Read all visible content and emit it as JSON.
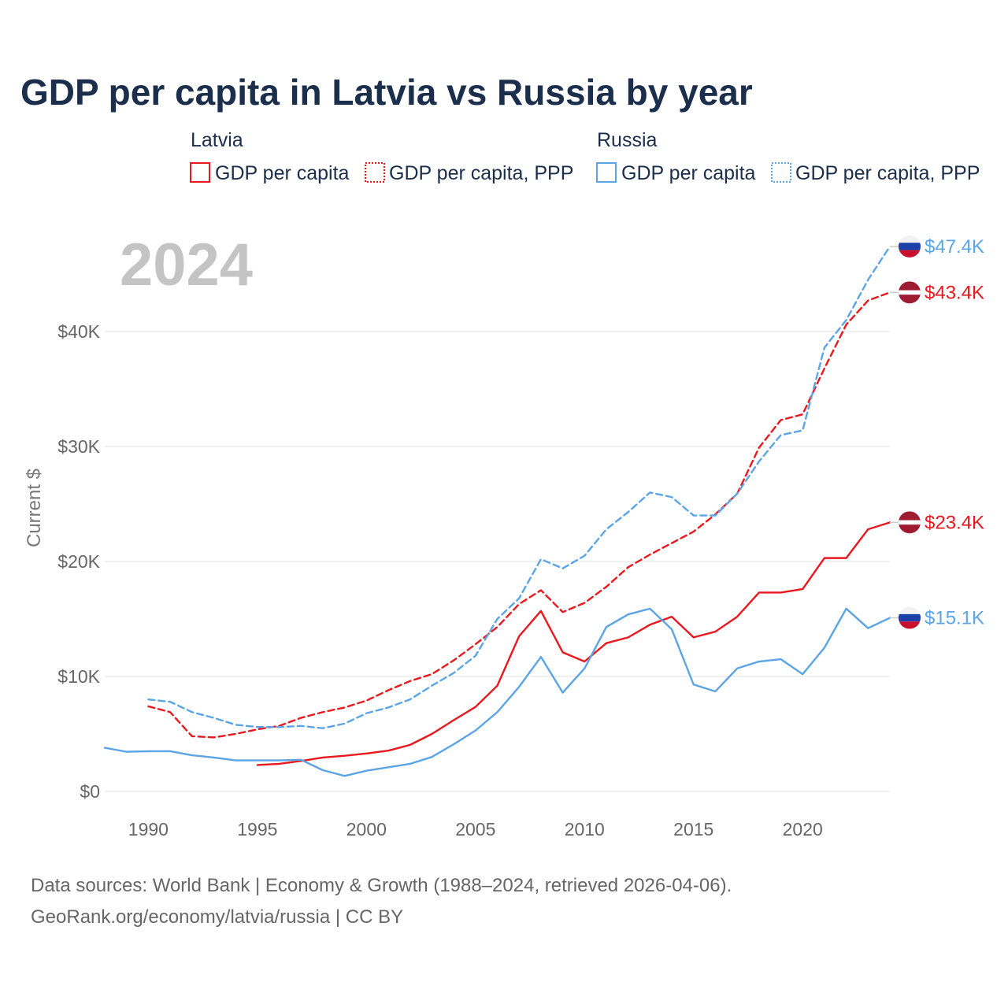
{
  "title": "GDP per capita in Latvia vs Russia by year",
  "year_display": "2024",
  "legend": {
    "groups": [
      {
        "name": "Latvia",
        "color": "#e8191e",
        "items": [
          {
            "label": "GDP per capita",
            "style": "solid"
          },
          {
            "label": "GDP per capita, PPP",
            "style": "dashed"
          }
        ]
      },
      {
        "name": "Russia",
        "color": "#5ba4e6",
        "items": [
          {
            "label": "GDP per capita",
            "style": "solid"
          },
          {
            "label": "GDP per capita, PPP",
            "style": "dashed"
          }
        ]
      }
    ]
  },
  "footer": {
    "line1": "Data sources: World Bank | Economy & Growth (1988–2024, retrieved 2026-04-06).",
    "line2": "GeoRank.org/economy/latvia/russia | CC BY"
  },
  "chart_data": {
    "type": "line",
    "title": "GDP per capita in Latvia vs Russia by year",
    "xlabel": "",
    "ylabel": "Current $",
    "xlim": [
      1988,
      2024
    ],
    "ylim": [
      0,
      50000
    ],
    "x_ticks": [
      1990,
      1995,
      2000,
      2005,
      2010,
      2015,
      2020
    ],
    "x_tick_labels": [
      "1990",
      "1995",
      "2000",
      "2005",
      "2010",
      "2015",
      "2020"
    ],
    "y_ticks": [
      0,
      10000,
      20000,
      30000,
      40000
    ],
    "y_tick_labels": [
      "$0",
      "$10K",
      "$20K",
      "$30K",
      "$40K"
    ],
    "grid": true,
    "series": [
      {
        "name": "Latvia GDP per capita",
        "country": "Latvia",
        "color": "#e8191e",
        "dash": "solid",
        "end_label": "$23.4K",
        "x": [
          1995,
          1996,
          1997,
          1998,
          1999,
          2000,
          2001,
          2002,
          2003,
          2004,
          2005,
          2006,
          2007,
          2008,
          2009,
          2010,
          2011,
          2012,
          2013,
          2014,
          2015,
          2016,
          2017,
          2018,
          2019,
          2020,
          2021,
          2022,
          2023,
          2024
        ],
        "values": [
          2300,
          2400,
          2650,
          2950,
          3100,
          3300,
          3550,
          4050,
          5000,
          6200,
          7350,
          9200,
          13500,
          15700,
          12100,
          11300,
          12900,
          13400,
          14500,
          15200,
          13400,
          13900,
          15200,
          17300,
          17300,
          17600,
          20300,
          20300,
          22800,
          23400
        ]
      },
      {
        "name": "Latvia GDP per capita, PPP",
        "country": "Latvia",
        "color": "#e8191e",
        "dash": "dashed",
        "end_label": "$43.4K",
        "x": [
          1990,
          1991,
          1992,
          1993,
          1994,
          1995,
          1996,
          1997,
          1998,
          1999,
          2000,
          2001,
          2002,
          2003,
          2004,
          2005,
          2006,
          2007,
          2008,
          2009,
          2010,
          2011,
          2012,
          2013,
          2014,
          2015,
          2016,
          2017,
          2018,
          2019,
          2020,
          2021,
          2022,
          2023,
          2024
        ],
        "values": [
          7400,
          6900,
          4800,
          4700,
          5000,
          5400,
          5700,
          6400,
          6900,
          7300,
          7900,
          8800,
          9600,
          10200,
          11400,
          12800,
          14300,
          16300,
          17500,
          15600,
          16400,
          17800,
          19500,
          20600,
          21600,
          22600,
          24100,
          25900,
          29900,
          32300,
          32800,
          36800,
          40600,
          42700,
          43400
        ]
      },
      {
        "name": "Russia GDP per capita",
        "country": "Russia",
        "color": "#5ba4e6",
        "dash": "solid",
        "end_label": "$15.1K",
        "x": [
          1988,
          1989,
          1990,
          1991,
          1992,
          1993,
          1994,
          1995,
          1996,
          1997,
          1998,
          1999,
          2000,
          2001,
          2002,
          2003,
          2004,
          2005,
          2006,
          2007,
          2008,
          2009,
          2010,
          2011,
          2012,
          2013,
          2014,
          2015,
          2016,
          2017,
          2018,
          2019,
          2020,
          2021,
          2022,
          2023,
          2024
        ],
        "values": [
          3800,
          3450,
          3500,
          3500,
          3150,
          2950,
          2700,
          2700,
          2700,
          2750,
          1850,
          1350,
          1800,
          2100,
          2400,
          3000,
          4100,
          5300,
          6900,
          9100,
          11700,
          8600,
          10700,
          14300,
          15400,
          15900,
          14100,
          9300,
          8700,
          10700,
          11300,
          11500,
          10200,
          12500,
          15900,
          14200,
          15100
        ]
      },
      {
        "name": "Russia GDP per capita, PPP",
        "country": "Russia",
        "color": "#5ba4e6",
        "dash": "dashed",
        "end_label": "$47.4K",
        "x": [
          1990,
          1991,
          1992,
          1993,
          1994,
          1995,
          1996,
          1997,
          1998,
          1999,
          2000,
          2001,
          2002,
          2003,
          2004,
          2005,
          2006,
          2007,
          2008,
          2009,
          2010,
          2011,
          2012,
          2013,
          2014,
          2015,
          2016,
          2017,
          2018,
          2019,
          2020,
          2021,
          2022,
          2023,
          2024
        ],
        "values": [
          8000,
          7800,
          6900,
          6400,
          5800,
          5600,
          5600,
          5700,
          5500,
          5900,
          6800,
          7300,
          8000,
          9200,
          10300,
          11800,
          15000,
          16800,
          20200,
          19400,
          20500,
          22800,
          24300,
          26000,
          25600,
          24000,
          24000,
          25900,
          28700,
          31000,
          31400,
          38600,
          41000,
          44500,
          47400
        ]
      }
    ]
  }
}
